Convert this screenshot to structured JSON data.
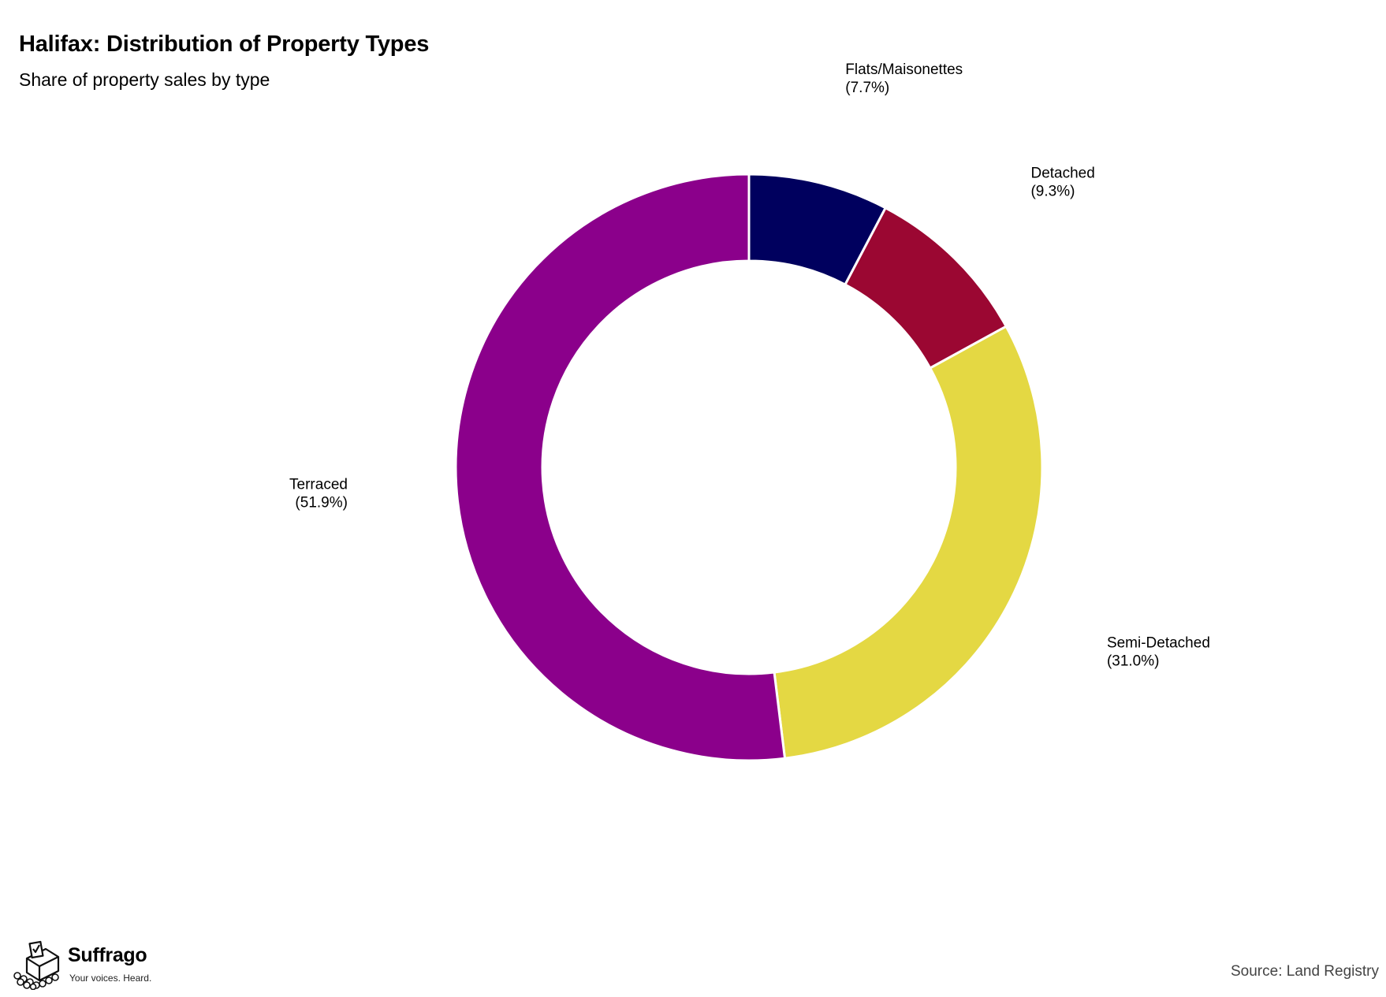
{
  "header": {
    "title": "Halifax: Distribution of Property Types",
    "subtitle": "Share of property sales by type"
  },
  "chart_data": {
    "type": "pie",
    "donut": true,
    "start_angle_deg": 0,
    "direction": "clockwise",
    "title": "Halifax: Distribution of Property Types",
    "subtitle": "Share of property sales by type",
    "categories": [
      "Flats/Maisonettes",
      "Detached",
      "Semi-Detached",
      "Terraced"
    ],
    "values": [
      7.7,
      9.3,
      31.0,
      51.9
    ],
    "labels": [
      "(7.7%)",
      "(9.3%)",
      "(31.0%)",
      "(51.9%)"
    ],
    "colors": [
      "#00005e",
      "#9b0732",
      "#e4d843",
      "#8b008b"
    ]
  },
  "footer": {
    "brand_name": "Suffrago",
    "brand_tagline": "Your voices. Heard.",
    "source": "Source: Land Registry"
  },
  "icons": {
    "brand_logo": "ballot-box-icon"
  }
}
